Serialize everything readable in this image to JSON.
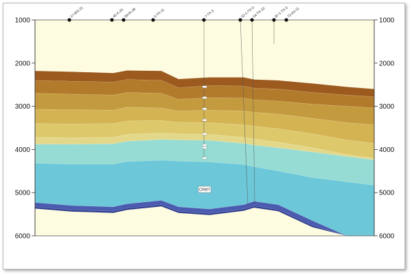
{
  "section": {
    "depth_axis": {
      "min": 1000,
      "max": 6000,
      "ticks": [
        1000,
        2000,
        3000,
        4000,
        5000,
        6000
      ]
    },
    "wells": [
      {
        "name": "17-WX-21"
      },
      {
        "name": "45-X-24"
      },
      {
        "name": "59-IX-28"
      },
      {
        "name": "5-TX-11"
      },
      {
        "name": "7-TX-3"
      },
      {
        "name": "52-1-TX-3"
      },
      {
        "name": "54-TX-10"
      },
      {
        "name": "87-1-TX-3"
      },
      {
        "name": "73-AX-11"
      }
    ],
    "layer_label": "CRMT",
    "colors": {
      "background": "#fefce0",
      "units": [
        "#9c5a1f",
        "#b27b2b",
        "#c49a3e",
        "#d4b452",
        "#ddc96c",
        "#e3d889",
        "#96dcd4",
        "#6cc7d8",
        "#4a5bb0",
        "#2f3c8f"
      ]
    }
  }
}
